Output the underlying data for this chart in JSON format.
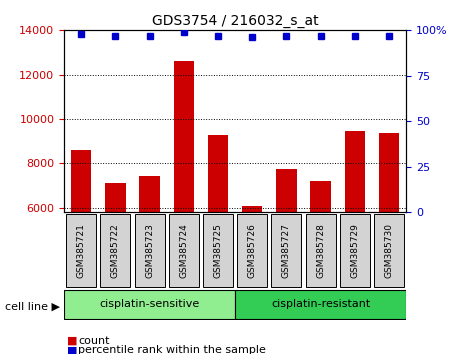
{
  "title": "GDS3754 / 216032_s_at",
  "samples": [
    "GSM385721",
    "GSM385722",
    "GSM385723",
    "GSM385724",
    "GSM385725",
    "GSM385726",
    "GSM385727",
    "GSM385728",
    "GSM385729",
    "GSM385730"
  ],
  "counts": [
    8600,
    7100,
    7450,
    12600,
    9300,
    6100,
    7750,
    7200,
    9450,
    9350
  ],
  "percentile_ranks": [
    98,
    97,
    97,
    99,
    97,
    96,
    97,
    97,
    97,
    97
  ],
  "ylim_left": [
    5800,
    14000
  ],
  "ylim_right": [
    0,
    100
  ],
  "yticks_left": [
    6000,
    8000,
    10000,
    12000,
    14000
  ],
  "yticks_right": [
    0,
    25,
    50,
    75,
    100
  ],
  "bar_color": "#cc0000",
  "dot_color": "#0000cc",
  "bar_bottom": 5800,
  "groups": [
    {
      "label": "cisplatin-sensitive",
      "start": 0,
      "end": 5,
      "color": "#90ee90"
    },
    {
      "label": "cisplatin-resistant",
      "start": 5,
      "end": 10,
      "color": "#33cc55"
    }
  ],
  "cell_line_label": "cell line",
  "legend_count_label": "count",
  "legend_pct_label": "percentile rank within the sample",
  "bar_color_legend": "#cc0000",
  "dot_color_legend": "#0000cc",
  "tick_bg_color": "#d3d3d3",
  "background_color": "#ffffff"
}
